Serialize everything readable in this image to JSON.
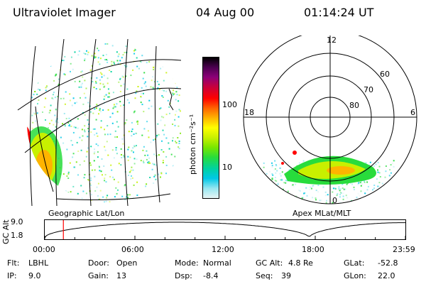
{
  "header": {
    "title": "Ultraviolet Imager",
    "date": "04 Aug 00",
    "time": "01:14:24 UT"
  },
  "colorbar": {
    "label": "photon cm⁻²s⁻¹",
    "ticks": [
      "100",
      "10"
    ],
    "colors": [
      "#000000",
      "#4b0050",
      "#8c0078",
      "#c8003c",
      "#ff0000",
      "#ff6400",
      "#ffb400",
      "#ffff00",
      "#c8f000",
      "#78e600",
      "#28dc3c",
      "#00d2a0",
      "#00c8e6",
      "#96e6f0",
      "#e6f5f5"
    ]
  },
  "geo_panel": {
    "caption": "Geographic Lat/Lon"
  },
  "polar_panel": {
    "caption": "Apex MLat/MLT",
    "mlt_labels": [
      "12",
      "18",
      "6",
      "0"
    ],
    "lat_labels": [
      "60",
      "70",
      "80"
    ]
  },
  "altitude_plot": {
    "ylabel": "GC Alt",
    "yticks": [
      "9.0",
      "1.8"
    ],
    "xticks": [
      "00:00",
      "06:00",
      "12:00",
      "18:00",
      "23:59"
    ],
    "marker_time_hours": 1.24,
    "marker_color": "#ff0000"
  },
  "footer": [
    [
      {
        "k": "Flt:",
        "v": "LBHL"
      },
      {
        "k": "Door:",
        "v": "Open"
      },
      {
        "k": "Mode:",
        "v": "Normal"
      },
      {
        "k": "GC Alt:",
        "v": "4.8 Re"
      },
      {
        "k": "GLat:",
        "v": "-52.8"
      }
    ],
    [
      {
        "k": "IP:",
        "v": "9.0"
      },
      {
        "k": "Gain:",
        "v": "13"
      },
      {
        "k": "Dsp:",
        "v": "-8.4"
      },
      {
        "k": "Seq:",
        "v": "39"
      },
      {
        "k": "GLon:",
        "v": "22.0"
      }
    ]
  ]
}
